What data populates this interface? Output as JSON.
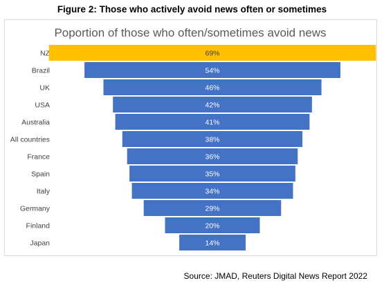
{
  "figure_title": "Figure 2: Those who actively avoid news often or sometimes",
  "source": "Source: JMAD, Reuters Digital News Report 2022",
  "chart_data": {
    "type": "bar",
    "orientation": "horizontal-centered-funnel",
    "title": "Poportion of those who often/sometimes avoid news",
    "categories": [
      "NZ",
      "Brazil",
      "UK",
      "USA",
      "Australia",
      "All countries",
      "France",
      "Spain",
      "Italy",
      "Germany",
      "Finland",
      "Japan"
    ],
    "values": [
      69,
      54,
      46,
      42,
      41,
      38,
      36,
      35,
      34,
      29,
      20,
      14
    ],
    "data_labels": [
      "69%",
      "54%",
      "46%",
      "42%",
      "41%",
      "38%",
      "36%",
      "35%",
      "34%",
      "29%",
      "20%",
      "14%"
    ],
    "unit": "%",
    "colors": {
      "highlight": "#FFC000",
      "default": "#4472C4",
      "title": "#595959",
      "label": "#404040"
    },
    "highlight_category": "NZ",
    "grid": false,
    "legend": "none"
  }
}
